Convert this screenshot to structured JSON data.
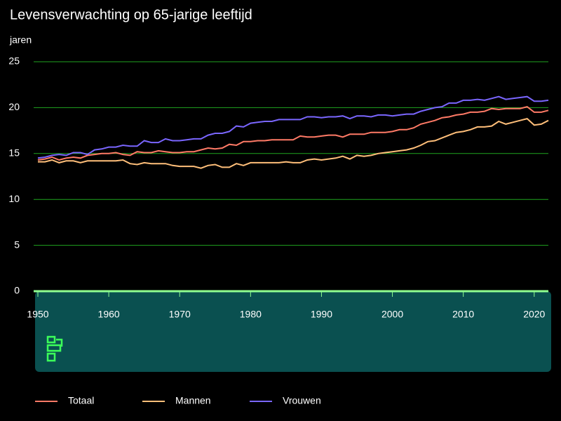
{
  "chart_data": {
    "type": "line",
    "title": "Levensverwachting op 65-jarige leeftijd",
    "y_label": "jaren",
    "x": [
      1950,
      1951,
      1952,
      1953,
      1954,
      1955,
      1956,
      1957,
      1958,
      1959,
      1960,
      1961,
      1962,
      1963,
      1964,
      1965,
      1966,
      1967,
      1968,
      1969,
      1970,
      1971,
      1972,
      1973,
      1974,
      1975,
      1976,
      1977,
      1978,
      1979,
      1980,
      1981,
      1982,
      1983,
      1984,
      1985,
      1986,
      1987,
      1988,
      1989,
      1990,
      1991,
      1992,
      1993,
      1994,
      1995,
      1996,
      1997,
      1998,
      1999,
      2000,
      2001,
      2002,
      2003,
      2004,
      2005,
      2006,
      2007,
      2008,
      2009,
      2010,
      2011,
      2012,
      2013,
      2014,
      2015,
      2016,
      2017,
      2018,
      2019,
      2020,
      2021,
      2022
    ],
    "series": [
      {
        "name": "Totaal",
        "color": "#ff7a66",
        "values": [
          14.3,
          14.4,
          14.6,
          14.3,
          14.5,
          14.6,
          14.5,
          14.8,
          14.9,
          15.0,
          15.0,
          15.1,
          14.9,
          14.8,
          15.2,
          15.1,
          15.1,
          15.3,
          15.2,
          15.1,
          15.1,
          15.2,
          15.2,
          15.4,
          15.6,
          15.5,
          15.6,
          16.0,
          15.9,
          16.3,
          16.3,
          16.4,
          16.4,
          16.5,
          16.5,
          16.5,
          16.5,
          16.9,
          16.8,
          16.8,
          16.9,
          17.0,
          17.0,
          16.8,
          17.1,
          17.1,
          17.1,
          17.3,
          17.3,
          17.3,
          17.4,
          17.6,
          17.6,
          17.8,
          18.2,
          18.4,
          18.6,
          18.9,
          19.0,
          19.2,
          19.3,
          19.5,
          19.5,
          19.6,
          19.9,
          19.8,
          19.9,
          19.9,
          19.9,
          20.1,
          19.5,
          19.5,
          19.7
        ]
      },
      {
        "name": "Mannen",
        "color": "#ffbf7a",
        "values": [
          14.1,
          14.1,
          14.3,
          14.0,
          14.2,
          14.2,
          14.0,
          14.2,
          14.2,
          14.2,
          14.2,
          14.2,
          14.3,
          13.9,
          13.8,
          14.0,
          13.9,
          13.9,
          13.9,
          13.7,
          13.6,
          13.6,
          13.6,
          13.4,
          13.7,
          13.8,
          13.5,
          13.5,
          13.9,
          13.7,
          14.0,
          14.0,
          14.0,
          14.0,
          14.0,
          14.1,
          14.0,
          14.0,
          14.3,
          14.4,
          14.3,
          14.4,
          14.5,
          14.7,
          14.4,
          14.8,
          14.7,
          14.8,
          15.0,
          15.1,
          15.2,
          15.3,
          15.4,
          15.6,
          15.9,
          16.3,
          16.4,
          16.7,
          17.0,
          17.3,
          17.4,
          17.6,
          17.9,
          17.9,
          18.0,
          18.5,
          18.2,
          18.4,
          18.6,
          18.8,
          18.1,
          18.2,
          18.6
        ]
      },
      {
        "name": "Vrouwen",
        "color": "#7a66ff",
        "values": [
          14.5,
          14.6,
          14.8,
          14.9,
          14.8,
          15.1,
          15.1,
          14.9,
          15.4,
          15.5,
          15.7,
          15.7,
          15.9,
          15.8,
          15.8,
          16.4,
          16.2,
          16.2,
          16.6,
          16.4,
          16.4,
          16.5,
          16.6,
          16.6,
          17.0,
          17.2,
          17.2,
          17.4,
          18.0,
          17.9,
          18.3,
          18.4,
          18.5,
          18.5,
          18.7,
          18.7,
          18.7,
          18.7,
          19.0,
          19.0,
          18.9,
          19.0,
          19.0,
          19.1,
          18.8,
          19.1,
          19.1,
          19.0,
          19.2,
          19.2,
          19.1,
          19.2,
          19.3,
          19.3,
          19.6,
          19.8,
          20.0,
          20.1,
          20.5,
          20.5,
          20.8,
          20.8,
          20.9,
          20.8,
          21.0,
          21.2,
          20.9,
          21.0,
          21.1,
          21.2,
          20.7,
          20.7,
          20.8
        ]
      }
    ],
    "xlim": [
      1950,
      2022
    ],
    "xticks": [
      1950,
      1960,
      1970,
      1980,
      1990,
      2000,
      2010,
      2020
    ],
    "ylim": [
      0,
      25
    ],
    "yticks": [
      0,
      5,
      10,
      15,
      20,
      25
    ],
    "grid": true,
    "legend": "bottom"
  }
}
